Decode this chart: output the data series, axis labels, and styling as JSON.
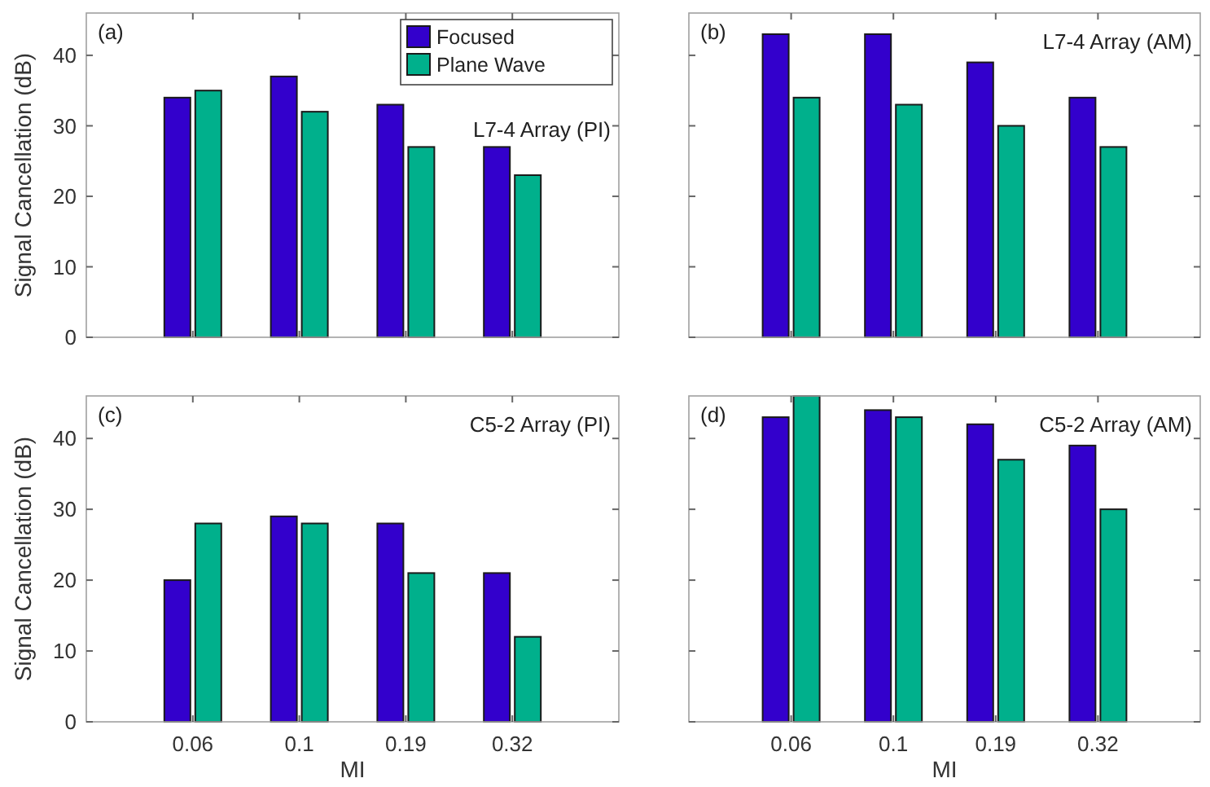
{
  "chart_data": [
    {
      "type": "bar",
      "annotations": [
        "(a)",
        "L7-4 Array (PI)"
      ],
      "ylabel": "Signal Cancellation (dB)",
      "categories": [
        "0.06",
        "0.1",
        "0.19",
        "0.32"
      ],
      "ylim": [
        0,
        46
      ],
      "yticks": [
        0,
        10,
        20,
        30,
        40
      ],
      "tick_labels": "y",
      "legend": "top right",
      "series": [
        {
          "name": "Focused",
          "color": "#3300cc",
          "values": [
            34,
            37,
            33,
            27
          ]
        },
        {
          "name": "Plane Wave",
          "color": "#00b08c",
          "values": [
            35,
            32,
            27,
            23
          ]
        }
      ]
    },
    {
      "type": "bar",
      "annotations": [
        "(b)",
        "L7-4 Array (AM)"
      ],
      "categories": [
        "0.06",
        "0.1",
        "0.19",
        "0.32"
      ],
      "ylim": [
        0,
        46
      ],
      "yticks": [
        0,
        10,
        20,
        30,
        40
      ],
      "tick_labels": false,
      "series": [
        {
          "color": "#3300cc",
          "values": [
            43,
            43,
            39,
            34
          ]
        },
        {
          "color": "#00b08c",
          "values": [
            34,
            33,
            30,
            27
          ]
        }
      ]
    },
    {
      "type": "bar",
      "annotations": [
        "(c)",
        "C5-2 Array (PI)"
      ],
      "ylabel": "Signal Cancellation (dB)",
      "xlabel": "MI",
      "categories": [
        "0.06",
        "0.1",
        "0.19",
        "0.32"
      ],
      "ylim": [
        0,
        46
      ],
      "yticks": [
        0,
        10,
        20,
        30,
        40
      ],
      "series": [
        {
          "color": "#3300cc",
          "values": [
            20,
            29,
            28,
            21
          ]
        },
        {
          "color": "#00b08c",
          "values": [
            28,
            28,
            21,
            12
          ]
        }
      ]
    },
    {
      "type": "bar",
      "annotations": [
        "(d)",
        "C5-2 Array (AM)"
      ],
      "xlabel": "MI",
      "categories": [
        "0.06",
        "0.1",
        "0.19",
        "0.32"
      ],
      "ylim": [
        0,
        46
      ],
      "yticks": [
        0,
        10,
        20,
        30,
        40
      ],
      "tick_labels": "x",
      "series": [
        {
          "color": "#3300cc",
          "values": [
            43,
            44,
            42,
            39
          ]
        },
        {
          "color": "#00b08c",
          "values": [
            46,
            43,
            37,
            30
          ]
        }
      ]
    }
  ]
}
